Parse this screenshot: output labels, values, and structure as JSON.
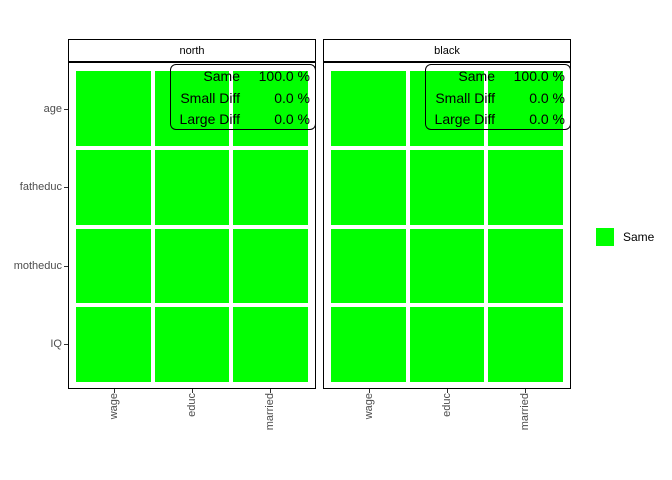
{
  "chart_data": {
    "type": "heatmap",
    "title": "",
    "x_categories": [
      "wage",
      "educ",
      "married"
    ],
    "y_categories": [
      "age",
      "fatheduc",
      "motheduc",
      "IQ"
    ],
    "facets": [
      {
        "label": "north",
        "cells": [
          [
            "Same",
            "Same",
            "Same"
          ],
          [
            "Same",
            "Same",
            "Same"
          ],
          [
            "Same",
            "Same",
            "Same"
          ],
          [
            "Same",
            "Same",
            "Same"
          ]
        ],
        "annotation": [
          {
            "label": "Same",
            "value": "100.0 %"
          },
          {
            "label": "Small Diff",
            "value": "0.0 %"
          },
          {
            "label": "Large Diff",
            "value": "0.0 %"
          }
        ]
      },
      {
        "label": "black",
        "cells": [
          [
            "Same",
            "Same",
            "Same"
          ],
          [
            "Same",
            "Same",
            "Same"
          ],
          [
            "Same",
            "Same",
            "Same"
          ],
          [
            "Same",
            "Same",
            "Same"
          ]
        ],
        "annotation": [
          {
            "label": "Same",
            "value": "100.0 %"
          },
          {
            "label": "Small Diff",
            "value": "0.0 %"
          },
          {
            "label": "Large Diff",
            "value": "0.0 %"
          }
        ]
      }
    ],
    "legend": {
      "position": "right",
      "items": [
        {
          "label": "Same",
          "color": "#00ff00"
        }
      ]
    },
    "colors": {
      "Same": "#00ff00",
      "axis_text": "#4d4d4d",
      "panel_border": "#000000",
      "background": "#ffffff"
    },
    "layout_hints": {
      "grid": "off",
      "x_label_angle": 90,
      "facet_titles": [
        "north",
        "black"
      ]
    }
  }
}
